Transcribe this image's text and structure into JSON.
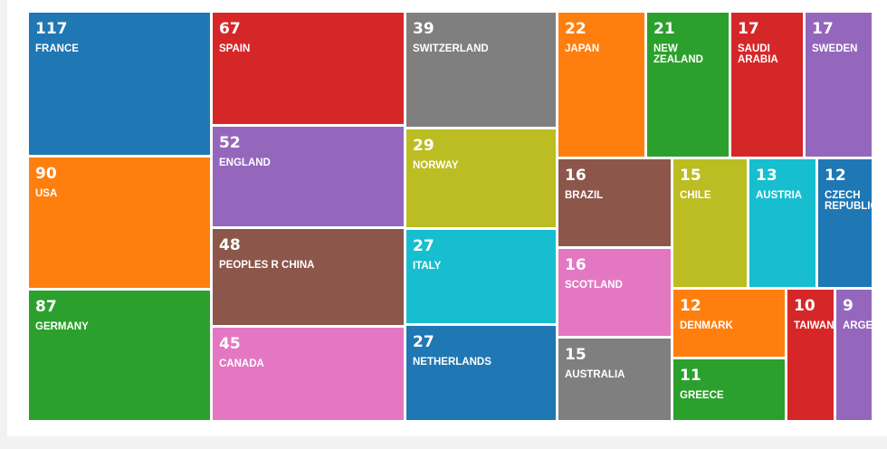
{
  "chart_data": {
    "type": "treemap",
    "items": [
      {
        "label": "FRANCE",
        "value": 117,
        "color": "#1f77b4"
      },
      {
        "label": "USA",
        "value": 90,
        "color": "#ff7f0e"
      },
      {
        "label": "GERMANY",
        "value": 87,
        "color": "#2ca02c"
      },
      {
        "label": "SPAIN",
        "value": 67,
        "color": "#d62728"
      },
      {
        "label": "ENGLAND",
        "value": 52,
        "color": "#9467bd"
      },
      {
        "label": "PEOPLES R CHINA",
        "value": 48,
        "color": "#8c564b"
      },
      {
        "label": "CANADA",
        "value": 45,
        "color": "#e377c2"
      },
      {
        "label": "SWITZERLAND",
        "value": 39,
        "color": "#7f7f7f"
      },
      {
        "label": "NORWAY",
        "value": 29,
        "color": "#bcbd22"
      },
      {
        "label": "ITALY",
        "value": 27,
        "color": "#17becf"
      },
      {
        "label": "NETHERLANDS",
        "value": 27,
        "color": "#1f77b4"
      },
      {
        "label": "JAPAN",
        "value": 22,
        "color": "#ff7f0e"
      },
      {
        "label": "NEW ZEALAND",
        "value": 21,
        "color": "#2ca02c"
      },
      {
        "label": "SAUDI ARABIA",
        "value": 17,
        "color": "#d62728"
      },
      {
        "label": "SWEDEN",
        "value": 17,
        "color": "#9467bd"
      },
      {
        "label": "BRAZIL",
        "value": 16,
        "color": "#8c564b"
      },
      {
        "label": "SCOTLAND",
        "value": 16,
        "color": "#e377c2"
      },
      {
        "label": "AUSTRALIA",
        "value": 15,
        "color": "#7f7f7f"
      },
      {
        "label": "CHILE",
        "value": 15,
        "color": "#bcbd22"
      },
      {
        "label": "AUSTRIA",
        "value": 13,
        "color": "#17becf"
      },
      {
        "label": "CZECH REPUBLIC",
        "value": 12,
        "color": "#1f77b4"
      },
      {
        "label": "DENMARK",
        "value": 12,
        "color": "#ff7f0e"
      },
      {
        "label": "GREECE",
        "value": 11,
        "color": "#2ca02c"
      },
      {
        "label": "TAIWAN",
        "value": 10,
        "color": "#d62728"
      },
      {
        "label": "ARGENTINA",
        "value": 9,
        "color": "#9467bd"
      }
    ]
  }
}
